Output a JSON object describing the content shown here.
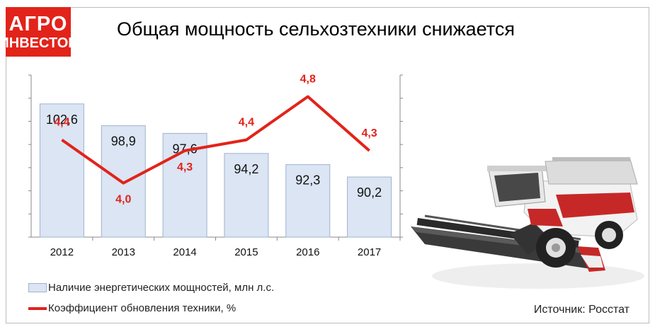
{
  "logo": {
    "line1": "АГРО",
    "line2": "ИНВЕСТОР"
  },
  "title": "Общая мощность сельхозтехники снижается",
  "colors": {
    "bar_fill": "#dbe5f3",
    "bar_stroke": "#9fb3cf",
    "line": "#e2231a",
    "brand": "#e2231a"
  },
  "chart_data": {
    "type": "bar",
    "categories": [
      "2012",
      "2013",
      "2014",
      "2015",
      "2016",
      "2017"
    ],
    "series": [
      {
        "name": "Наличие энергетических мощностей, млн л.с.",
        "type": "bar",
        "values": [
          102.6,
          98.9,
          97.6,
          94.2,
          92.3,
          90.2
        ],
        "labels": [
          "102,6",
          "98,9",
          "97,6",
          "94,2",
          "92,3",
          "90,2"
        ]
      },
      {
        "name": "Коэффициент обновления техники, %",
        "type": "line",
        "values": [
          4.4,
          4.0,
          4.3,
          4.4,
          4.8,
          4.3
        ],
        "labels": [
          "4,4",
          "4,0",
          "4,3",
          "4,4",
          "4,8",
          "4,3"
        ]
      }
    ],
    "grid": false
  },
  "legend": {
    "bar": "Наличие энергетических мощностей, млн л.с.",
    "line": "Коэффициент обновления техники, %"
  },
  "source": "Источник: Росстат",
  "image": {
    "subject": "harvester-illustration"
  }
}
